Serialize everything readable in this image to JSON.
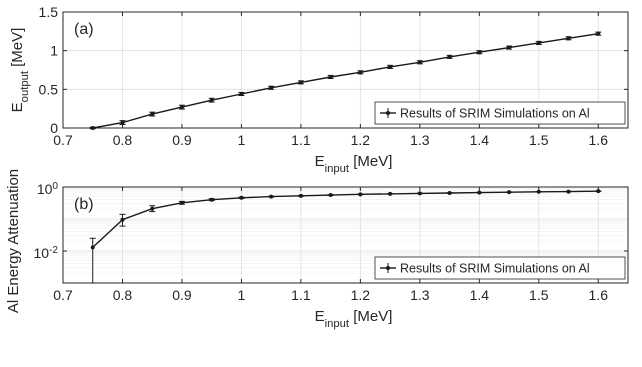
{
  "chart_data": [
    {
      "type": "line",
      "panel": "(a)",
      "xlabel_main": "E",
      "xlabel_sub": "input",
      "xlabel_unit": " [MeV]",
      "ylabel_main": "E",
      "ylabel_sub": "output",
      "ylabel_unit": " [MeV]",
      "xlim": [
        0.7,
        1.65
      ],
      "ylim": [
        0,
        1.5
      ],
      "yscale": "linear",
      "xticks": [
        0.7,
        0.8,
        0.9,
        1,
        1.1,
        1.2,
        1.3,
        1.4,
        1.5,
        1.6
      ],
      "xtick_labels": [
        "0.7",
        "0.8",
        "0.9",
        "1",
        "1.1",
        "1.2",
        "1.3",
        "1.4",
        "1.5",
        "1.6"
      ],
      "yticks": [
        0,
        0.5,
        1,
        1.5
      ],
      "ytick_labels": [
        "0",
        "0.5",
        "1",
        "1.5"
      ],
      "grid": true,
      "legend_position": "bottom-right",
      "series": [
        {
          "name": "Results of SRIM Simulations on Al",
          "x": [
            0.75,
            0.8,
            0.85,
            0.9,
            0.95,
            1.0,
            1.05,
            1.1,
            1.15,
            1.2,
            1.25,
            1.3,
            1.35,
            1.4,
            1.45,
            1.5,
            1.55,
            1.6
          ],
          "y": [
            0.0,
            0.07,
            0.18,
            0.27,
            0.36,
            0.44,
            0.52,
            0.59,
            0.66,
            0.72,
            0.79,
            0.85,
            0.92,
            0.98,
            1.04,
            1.1,
            1.16,
            1.22
          ],
          "err": [
            0.01,
            0.025,
            0.025,
            0.025,
            0.025,
            0.02,
            0.02,
            0.02,
            0.02,
            0.02,
            0.02,
            0.02,
            0.02,
            0.02,
            0.02,
            0.02,
            0.02,
            0.02
          ]
        }
      ]
    },
    {
      "type": "line",
      "panel": "(b)",
      "xlabel_main": "E",
      "xlabel_sub": "input",
      "xlabel_unit": " [MeV]",
      "ylabel": "Al Energy Attenuation",
      "xlim": [
        0.7,
        1.65
      ],
      "ylim": [
        0.001,
        1
      ],
      "yscale": "log",
      "xticks": [
        0.7,
        0.8,
        0.9,
        1,
        1.1,
        1.2,
        1.3,
        1.4,
        1.5,
        1.6
      ],
      "xtick_labels": [
        "0.7",
        "0.8",
        "0.9",
        "1",
        "1.1",
        "1.2",
        "1.3",
        "1.4",
        "1.5",
        "1.6"
      ],
      "yticks": [
        0.01,
        1
      ],
      "ytick_labels": [
        {
          "base": "10",
          "exp": "-2"
        },
        {
          "base": "10",
          "exp": "0"
        }
      ],
      "grid": true,
      "legend_position": "bottom-right",
      "series": [
        {
          "name": "Results of SRIM Simulations on Al",
          "x": [
            0.75,
            0.8,
            0.85,
            0.9,
            0.95,
            1.0,
            1.05,
            1.1,
            1.15,
            1.2,
            1.25,
            1.3,
            1.35,
            1.4,
            1.45,
            1.5,
            1.55,
            1.6
          ],
          "y": [
            0.013,
            0.095,
            0.21,
            0.32,
            0.4,
            0.46,
            0.5,
            0.53,
            0.56,
            0.59,
            0.61,
            0.63,
            0.65,
            0.67,
            0.69,
            0.71,
            0.72,
            0.74
          ],
          "err_low": [
            0.0125,
            0.035,
            0.04,
            0.03,
            0.025,
            0.02,
            0.015,
            0.015,
            0.015,
            0.015,
            0.01,
            0.01,
            0.01,
            0.01,
            0.01,
            0.01,
            0.01,
            0.01
          ],
          "err_high": [
            0.012,
            0.045,
            0.05,
            0.035,
            0.03,
            0.02,
            0.015,
            0.015,
            0.015,
            0.015,
            0.01,
            0.01,
            0.01,
            0.01,
            0.01,
            0.01,
            0.01,
            0.01
          ]
        }
      ]
    }
  ]
}
